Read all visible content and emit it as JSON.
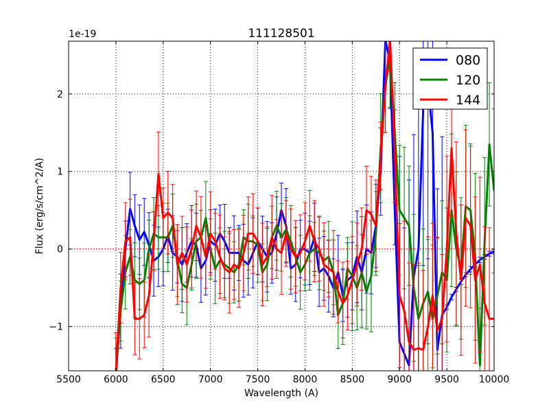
{
  "chart_data": {
    "type": "line",
    "title": "111128501",
    "xlabel": "Wavelength (A)",
    "ylabel": "Flux (erg/s/cm^2/A)",
    "y_offset_label": "1e-19",
    "y_scale": 1e-19,
    "xlim": [
      5500,
      10000
    ],
    "ylim": [
      -1.57,
      2.68
    ],
    "x_ticks": [
      5500,
      6000,
      6500,
      7000,
      7500,
      8000,
      8500,
      9000,
      9500,
      10000
    ],
    "y_ticks": [
      -1,
      0,
      1,
      2
    ],
    "y_tick_labels": [
      "−1",
      "0",
      "1",
      "2"
    ],
    "grid": true,
    "legend_position": "top-right",
    "zero_line_color": "#ff0000",
    "x_start": 6000,
    "x_step": 50,
    "error_block_edges": [
      6000,
      8500,
      9000,
      9500,
      10000
    ],
    "series": [
      {
        "name": "080",
        "color": "#0000ff",
        "values": [
          -1.6,
          -0.8,
          0.0,
          0.52,
          0.3,
          0.12,
          0.22,
          0.05,
          -0.15,
          -0.1,
          0.0,
          0.17,
          -0.05,
          -0.1,
          -0.2,
          -0.05,
          0.1,
          0.05,
          -0.25,
          -0.15,
          0.1,
          0.05,
          0.2,
          0.1,
          -0.05,
          -0.05,
          -0.05,
          -0.15,
          -0.2,
          -0.05,
          0.1,
          0.0,
          -0.1,
          -0.05,
          0.2,
          0.5,
          0.3,
          -0.25,
          -0.2,
          0.0,
          0.0,
          -0.05,
          0.15,
          -0.3,
          -0.25,
          -0.35,
          -0.5,
          -0.3,
          -0.6,
          -0.4,
          -0.35,
          -0.1,
          -0.3,
          0.0,
          -0.05,
          0.3,
          1.0,
          2.7,
          2.4,
          0.5,
          -1.2,
          -1.35,
          -1.5,
          -0.35,
          0.0,
          1.8,
          2.1,
          1.5,
          -1.3,
          -0.85,
          -0.75,
          -0.62,
          -0.52,
          -0.42,
          -0.33,
          -0.26,
          -0.2,
          -0.14,
          -0.1,
          -0.06,
          -0.03
        ],
        "error_blocks": [
          0.4,
          0.5,
          2.0,
          0.03
        ]
      },
      {
        "name": "120",
        "color": "#008000",
        "values": [
          -1.6,
          -0.8,
          -0.3,
          -0.1,
          -0.4,
          -0.45,
          -0.4,
          0.0,
          0.2,
          0.15,
          0.15,
          0.15,
          0.3,
          -0.15,
          -0.45,
          -0.5,
          -0.2,
          0.1,
          0.15,
          0.4,
          0.0,
          -0.25,
          -0.15,
          -0.2,
          -0.25,
          -0.3,
          -0.2,
          0.15,
          0.1,
          0.1,
          0.05,
          -0.3,
          -0.2,
          0.15,
          0.3,
          0.15,
          0.25,
          0.1,
          -0.1,
          -0.3,
          -0.2,
          -0.05,
          0.0,
          -0.05,
          -0.15,
          -0.1,
          -0.3,
          -0.85,
          -0.7,
          -0.25,
          -0.35,
          -0.5,
          -0.3,
          -0.55,
          -0.35,
          0.2,
          1.3,
          2.1,
          2.5,
          1.5,
          0.5,
          0.4,
          0.3,
          -0.5,
          -0.9,
          -0.7,
          -0.55,
          -0.9,
          -0.6,
          -0.3,
          -0.4,
          0.5,
          0.0,
          -0.25,
          0.55,
          0.5,
          -0.1,
          -1.5,
          0.1,
          1.35,
          0.75
        ],
        "error_blocks": [
          0.4,
          0.6,
          0.8,
          0.9
        ]
      },
      {
        "name": "144",
        "color": "#ff0000",
        "values": [
          -1.6,
          -0.5,
          0.1,
          0.15,
          -0.9,
          -0.9,
          -0.85,
          -0.6,
          0.1,
          0.97,
          0.4,
          0.47,
          0.4,
          -0.2,
          -0.05,
          -0.2,
          0.0,
          0.3,
          0.15,
          -0.1,
          0.2,
          0.1,
          -0.1,
          -0.25,
          -0.3,
          -0.2,
          -0.25,
          -0.05,
          0.2,
          0.2,
          0.1,
          -0.2,
          -0.1,
          0.15,
          0.0,
          -0.05,
          0.2,
          0.0,
          -0.1,
          -0.05,
          0.1,
          0.3,
          0.1,
          0.0,
          -0.2,
          -0.25,
          -0.3,
          -0.55,
          -0.7,
          -0.6,
          -0.4,
          -0.2,
          0.0,
          0.5,
          0.45,
          0.3,
          1.2,
          2.1,
          2.7,
          1.2,
          -0.6,
          -0.8,
          -1.2,
          -1.3,
          -1.28,
          -1.3,
          -1.0,
          -0.6,
          -1.05,
          -0.9,
          0.0,
          1.3,
          0.2,
          -0.4,
          0.4,
          0.3,
          -0.4,
          -0.2,
          -0.7,
          -0.9,
          -0.9
        ],
        "error_blocks": [
          0.45,
          0.5,
          1.0,
          1.0
        ]
      }
    ]
  }
}
